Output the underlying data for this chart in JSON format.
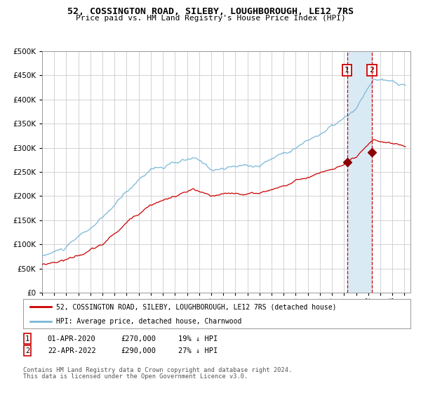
{
  "title": "52, COSSINGTON ROAD, SILEBY, LOUGHBOROUGH, LE12 7RS",
  "subtitle": "Price paid vs. HM Land Registry's House Price Index (HPI)",
  "hpi_color": "#7ab8d9",
  "price_color": "#cc0000",
  "marker_color": "#8b0000",
  "dashed_color": "#cc0000",
  "shade_color": "#daeaf4",
  "background_color": "#ffffff",
  "grid_color": "#cccccc",
  "ylim": [
    0,
    500000
  ],
  "yticks": [
    0,
    50000,
    100000,
    150000,
    200000,
    250000,
    300000,
    350000,
    400000,
    450000,
    500000
  ],
  "sale1_date_num": 2020.25,
  "sale1_price": 270000,
  "sale1_date_str": "01-APR-2020",
  "sale1_pct": "19% ↓ HPI",
  "sale2_date_num": 2022.31,
  "sale2_price": 290000,
  "sale2_date_str": "22-APR-2022",
  "sale2_pct": "27% ↓ HPI",
  "legend_line1": "52, COSSINGTON ROAD, SILEBY, LOUGHBOROUGH, LE12 7RS (detached house)",
  "legend_line2": "HPI: Average price, detached house, Charnwood",
  "footnote1": "Contains HM Land Registry data © Crown copyright and database right 2024.",
  "footnote2": "This data is licensed under the Open Government Licence v3.0.",
  "xlim_start": 1995.0,
  "xlim_end": 2025.5
}
